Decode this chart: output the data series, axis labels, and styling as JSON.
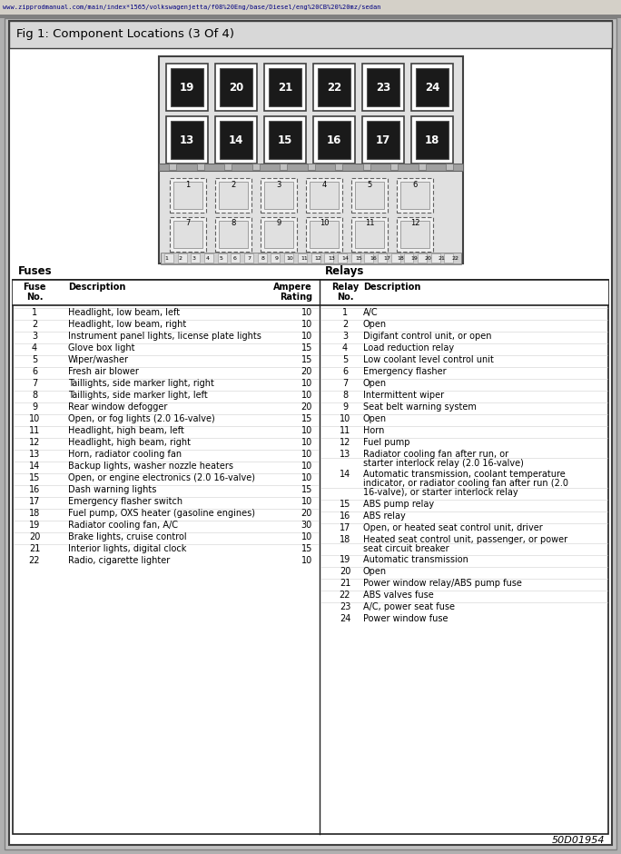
{
  "title": "Fig 1: Component Locations (3 Of 4)",
  "url_bar": "www.zipprodmanual.com/main/index*1565/volkswagenjetta/f08%20Eng/base/Diesel/eng%20CB%20%20mz/sedan",
  "fuses_header": "Fuses",
  "relays_header": "Relays",
  "fuses": [
    [
      1,
      "Headlight, low beam, left",
      10
    ],
    [
      2,
      "Headlight, low beam, right",
      10
    ],
    [
      3,
      "Instrument panel lights, license plate lights",
      10
    ],
    [
      4,
      "Glove box light",
      15
    ],
    [
      5,
      "Wiper/washer",
      15
    ],
    [
      6,
      "Fresh air blower",
      20
    ],
    [
      7,
      "Taillights, side marker light, right",
      10
    ],
    [
      8,
      "Taillights, side marker light, left",
      10
    ],
    [
      9,
      "Rear window defogger",
      20
    ],
    [
      10,
      "Open, or fog lights (2.0 16-valve)",
      15
    ],
    [
      11,
      "Headlight, high beam, left",
      10
    ],
    [
      12,
      "Headlight, high beam, right",
      10
    ],
    [
      13,
      "Horn, radiator cooling fan",
      10
    ],
    [
      14,
      "Backup lights, washer nozzle heaters",
      10
    ],
    [
      15,
      "Open, or engine electronics (2.0 16-valve)",
      10
    ],
    [
      16,
      "Dash warning lights",
      15
    ],
    [
      17,
      "Emergency flasher switch",
      10
    ],
    [
      18,
      "Fuel pump, OXS heater (gasoline engines)",
      20
    ],
    [
      19,
      "Radiator cooling fan, A/C",
      30
    ],
    [
      20,
      "Brake lights, cruise control",
      10
    ],
    [
      21,
      "Interior lights, digital clock",
      15
    ],
    [
      22,
      "Radio, cigarette lighter",
      10
    ]
  ],
  "relays": [
    [
      1,
      [
        "A/C"
      ]
    ],
    [
      2,
      [
        "Open"
      ]
    ],
    [
      3,
      [
        "Digifant control unit, or open"
      ]
    ],
    [
      4,
      [
        "Load reduction relay"
      ]
    ],
    [
      5,
      [
        "Low coolant level control unit"
      ]
    ],
    [
      6,
      [
        "Emergency flasher"
      ]
    ],
    [
      7,
      [
        "Open"
      ]
    ],
    [
      8,
      [
        "Intermittent wiper"
      ]
    ],
    [
      9,
      [
        "Seat belt warning system"
      ]
    ],
    [
      10,
      [
        "Open"
      ]
    ],
    [
      11,
      [
        "Horn"
      ]
    ],
    [
      12,
      [
        "Fuel pump"
      ]
    ],
    [
      13,
      [
        "Radiator cooling fan after run, or",
        "starter interlock relay (2.0 16-valve)"
      ]
    ],
    [
      14,
      [
        "Automatic transmission, coolant temperature",
        "indicator, or radiator cooling fan after run (2.0",
        "16-valve), or starter interlock relay"
      ]
    ],
    [
      15,
      [
        "ABS pump relay"
      ]
    ],
    [
      16,
      [
        "ABS relay"
      ]
    ],
    [
      17,
      [
        "Open, or heated seat control unit, driver"
      ]
    ],
    [
      18,
      [
        "Heated seat control unit, passenger, or power",
        "seat circuit breaker"
      ]
    ],
    [
      19,
      [
        "Automatic transmission"
      ]
    ],
    [
      20,
      [
        "Open"
      ]
    ],
    [
      21,
      [
        "Power window relay/ABS pump fuse"
      ]
    ],
    [
      22,
      [
        "ABS valves fuse"
      ]
    ],
    [
      23,
      [
        "A/C, power seat fuse"
      ]
    ],
    [
      24,
      [
        "Power window fuse"
      ]
    ]
  ],
  "diagram_label": "50D01954",
  "large_row1": [
    19,
    20,
    21,
    22,
    23,
    24
  ],
  "large_row2": [
    13,
    14,
    15,
    16,
    17,
    18
  ],
  "small_row1": [
    1,
    2,
    3,
    4,
    5,
    6
  ],
  "small_row2": [
    7,
    8,
    9,
    10,
    11,
    12
  ],
  "bottom_nums": [
    1,
    2,
    3,
    4,
    5,
    6,
    7,
    8,
    9,
    10,
    11,
    12,
    13,
    14,
    15,
    16,
    17,
    18,
    19,
    20,
    21,
    22
  ]
}
